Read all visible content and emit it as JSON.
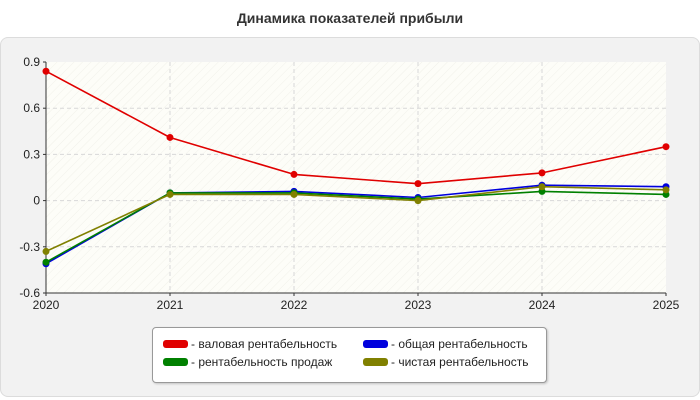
{
  "chart_data": {
    "type": "line",
    "title": "Динамика показателей прибыли",
    "x": [
      "2020",
      "2021",
      "2022",
      "2023",
      "2024",
      "2025"
    ],
    "ylim": [
      -0.6,
      0.9
    ],
    "yticks": [
      "0.9",
      "0.6",
      "0.3",
      "0",
      "-0.3",
      "-0.6"
    ],
    "yticks_values": [
      0.9,
      0.6,
      0.3,
      0,
      -0.3,
      -0.6
    ],
    "grid": true,
    "legend_position": "bottom",
    "series": [
      {
        "name": "- валовая рентабельность",
        "color": "#e00000",
        "values": [
          0.84,
          0.41,
          0.17,
          0.11,
          0.18,
          0.35
        ]
      },
      {
        "name": "- общая рентабельность",
        "color": "#0000dd",
        "values": [
          -0.41,
          0.05,
          0.06,
          0.02,
          0.1,
          0.09
        ]
      },
      {
        "name": "- рентабельность продаж",
        "color": "#008000",
        "values": [
          -0.4,
          0.05,
          0.05,
          0.01,
          0.06,
          0.04
        ]
      },
      {
        "name": "- чистая рентабельность",
        "color": "#808000",
        "values": [
          -0.33,
          0.04,
          0.04,
          0.0,
          0.09,
          0.07
        ]
      }
    ]
  }
}
